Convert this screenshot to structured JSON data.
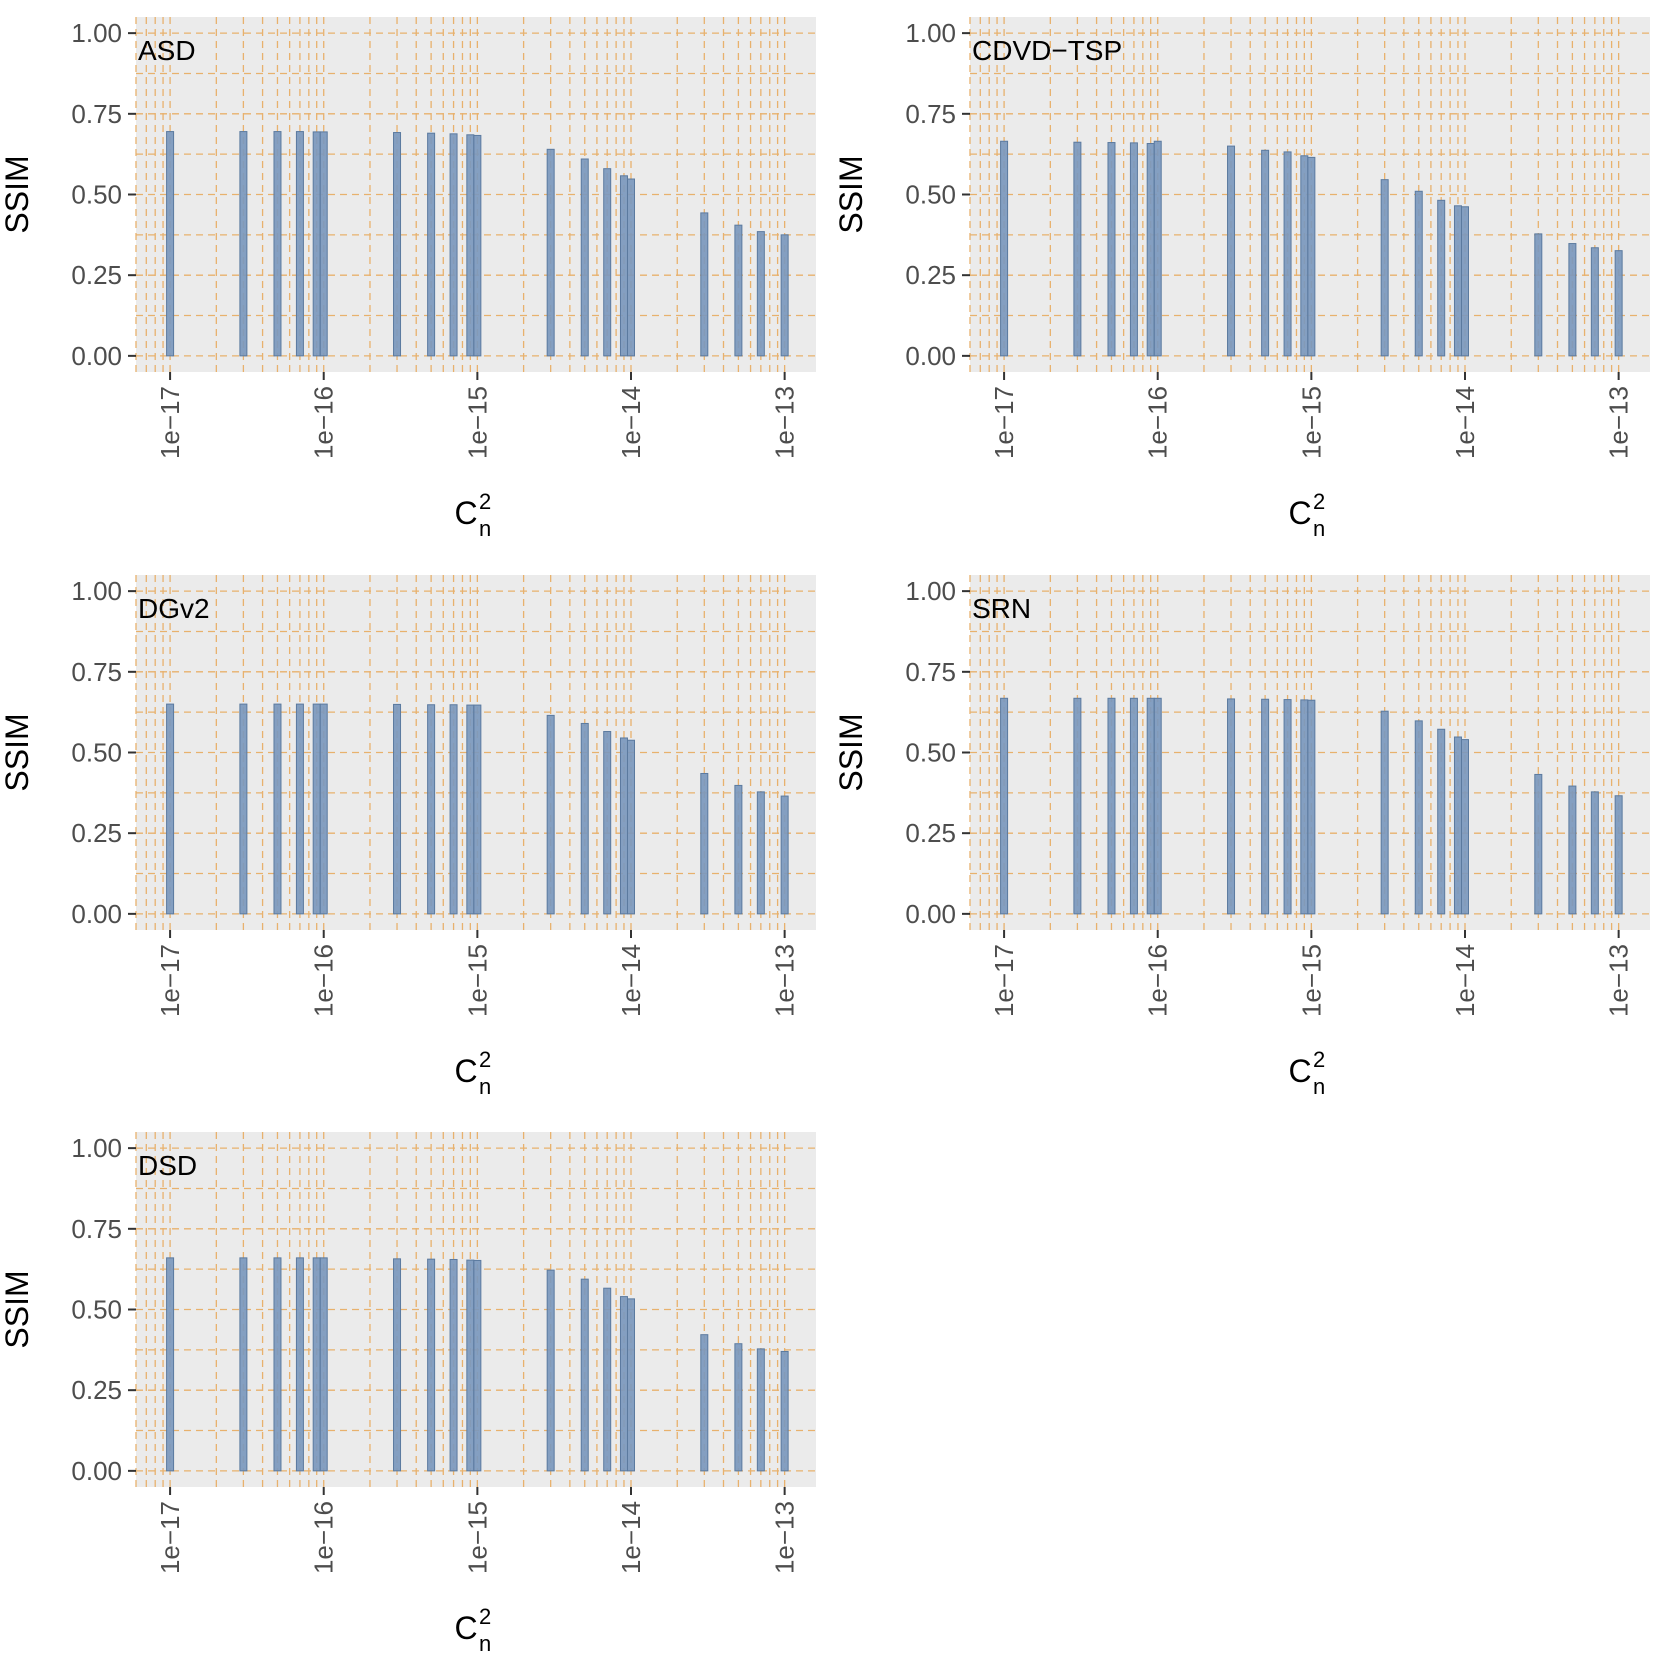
{
  "figure": {
    "background": "#ffffff",
    "panel_background": "#ebebeb"
  },
  "colors": {
    "bar": "#7b98bd",
    "bar_edge": "#5b7a9f",
    "grid": "#e8b16d",
    "axis_text": "#4d4d4d",
    "tick": "#333333"
  },
  "chart_data": [
    {
      "type": "bar",
      "title": "ASD",
      "xlabel_base": "C",
      "xlabel_sup": "2",
      "xlabel_sub": "n",
      "ylabel": "SSIM",
      "x_scale": "log10",
      "xlim": [
        6e-18,
        1.6e-13
      ],
      "ylim": [
        -0.05,
        1.05
      ],
      "yticks": [
        0.0,
        0.25,
        0.5,
        0.75,
        1.0
      ],
      "ytick_labels": [
        "0.00",
        "0.25",
        "0.50",
        "0.75",
        "1.00"
      ],
      "xticks": [
        1e-17,
        1e-16,
        1e-15,
        1e-14,
        1e-13
      ],
      "xtick_labels": [
        "1e−17",
        "1e−16",
        "1e−15",
        "1e−14",
        "1e−13"
      ],
      "x": [
        1e-17,
        3e-17,
        5e-17,
        7e-17,
        9e-17,
        1e-16,
        3e-16,
        5e-16,
        7e-16,
        9e-16,
        1e-15,
        3e-15,
        5e-15,
        7e-15,
        9e-15,
        1e-14,
        3e-14,
        5e-14,
        7e-14,
        1e-13
      ],
      "values": [
        0.695,
        0.695,
        0.695,
        0.695,
        0.694,
        0.694,
        0.692,
        0.69,
        0.688,
        0.685,
        0.683,
        0.64,
        0.61,
        0.58,
        0.558,
        0.548,
        0.443,
        0.405,
        0.385,
        0.375
      ],
      "grid": true
    },
    {
      "type": "bar",
      "title": "CDVD−TSP",
      "xlabel_base": "C",
      "xlabel_sup": "2",
      "xlabel_sub": "n",
      "ylabel": "SSIM",
      "x_scale": "log10",
      "xlim": [
        6e-18,
        1.6e-13
      ],
      "ylim": [
        -0.05,
        1.05
      ],
      "yticks": [
        0.0,
        0.25,
        0.5,
        0.75,
        1.0
      ],
      "ytick_labels": [
        "0.00",
        "0.25",
        "0.50",
        "0.75",
        "1.00"
      ],
      "xticks": [
        1e-17,
        1e-16,
        1e-15,
        1e-14,
        1e-13
      ],
      "xtick_labels": [
        "1e−17",
        "1e−16",
        "1e−15",
        "1e−14",
        "1e−13"
      ],
      "x": [
        1e-17,
        3e-17,
        5e-17,
        7e-17,
        9e-17,
        1e-16,
        3e-16,
        5e-16,
        7e-16,
        9e-16,
        1e-15,
        3e-15,
        5e-15,
        7e-15,
        9e-15,
        1e-14,
        3e-14,
        5e-14,
        7e-14,
        1e-13
      ],
      "values": [
        0.665,
        0.662,
        0.661,
        0.66,
        0.658,
        0.665,
        0.65,
        0.637,
        0.632,
        0.62,
        0.615,
        0.546,
        0.51,
        0.482,
        0.465,
        0.462,
        0.378,
        0.348,
        0.335,
        0.326
      ],
      "grid": true
    },
    {
      "type": "bar",
      "title": "DGv2",
      "xlabel_base": "C",
      "xlabel_sup": "2",
      "xlabel_sub": "n",
      "ylabel": "SSIM",
      "x_scale": "log10",
      "xlim": [
        6e-18,
        1.6e-13
      ],
      "ylim": [
        -0.05,
        1.05
      ],
      "yticks": [
        0.0,
        0.25,
        0.5,
        0.75,
        1.0
      ],
      "ytick_labels": [
        "0.00",
        "0.25",
        "0.50",
        "0.75",
        "1.00"
      ],
      "xticks": [
        1e-17,
        1e-16,
        1e-15,
        1e-14,
        1e-13
      ],
      "xtick_labels": [
        "1e−17",
        "1e−16",
        "1e−15",
        "1e−14",
        "1e−13"
      ],
      "x": [
        1e-17,
        3e-17,
        5e-17,
        7e-17,
        9e-17,
        1e-16,
        3e-16,
        5e-16,
        7e-16,
        9e-16,
        1e-15,
        3e-15,
        5e-15,
        7e-15,
        9e-15,
        1e-14,
        3e-14,
        5e-14,
        7e-14,
        1e-13
      ],
      "values": [
        0.65,
        0.65,
        0.65,
        0.65,
        0.65,
        0.65,
        0.649,
        0.648,
        0.648,
        0.647,
        0.647,
        0.615,
        0.59,
        0.565,
        0.545,
        0.538,
        0.435,
        0.398,
        0.378,
        0.365
      ],
      "grid": true
    },
    {
      "type": "bar",
      "title": "SRN",
      "xlabel_base": "C",
      "xlabel_sup": "2",
      "xlabel_sub": "n",
      "ylabel": "SSIM",
      "x_scale": "log10",
      "xlim": [
        6e-18,
        1.6e-13
      ],
      "ylim": [
        -0.05,
        1.05
      ],
      "yticks": [
        0.0,
        0.25,
        0.5,
        0.75,
        1.0
      ],
      "ytick_labels": [
        "0.00",
        "0.25",
        "0.50",
        "0.75",
        "1.00"
      ],
      "xticks": [
        1e-17,
        1e-16,
        1e-15,
        1e-14,
        1e-13
      ],
      "xtick_labels": [
        "1e−17",
        "1e−16",
        "1e−15",
        "1e−14",
        "1e−13"
      ],
      "x": [
        1e-17,
        3e-17,
        5e-17,
        7e-17,
        9e-17,
        1e-16,
        3e-16,
        5e-16,
        7e-16,
        9e-16,
        1e-15,
        3e-15,
        5e-15,
        7e-15,
        9e-15,
        1e-14,
        3e-14,
        5e-14,
        7e-14,
        1e-13
      ],
      "values": [
        0.668,
        0.668,
        0.668,
        0.668,
        0.668,
        0.668,
        0.666,
        0.665,
        0.664,
        0.663,
        0.662,
        0.628,
        0.598,
        0.572,
        0.548,
        0.54,
        0.432,
        0.396,
        0.378,
        0.366
      ],
      "grid": true
    },
    {
      "type": "bar",
      "title": "DSD",
      "xlabel_base": "C",
      "xlabel_sup": "2",
      "xlabel_sub": "n",
      "ylabel": "SSIM",
      "x_scale": "log10",
      "xlim": [
        6e-18,
        1.6e-13
      ],
      "ylim": [
        -0.05,
        1.05
      ],
      "yticks": [
        0.0,
        0.25,
        0.5,
        0.75,
        1.0
      ],
      "ytick_labels": [
        "0.00",
        "0.25",
        "0.50",
        "0.75",
        "1.00"
      ],
      "xticks": [
        1e-17,
        1e-16,
        1e-15,
        1e-14,
        1e-13
      ],
      "xtick_labels": [
        "1e−17",
        "1e−16",
        "1e−15",
        "1e−14",
        "1e−13"
      ],
      "x": [
        1e-17,
        3e-17,
        5e-17,
        7e-17,
        9e-17,
        1e-16,
        3e-16,
        5e-16,
        7e-16,
        9e-16,
        1e-15,
        3e-15,
        5e-15,
        7e-15,
        9e-15,
        1e-14,
        3e-14,
        5e-14,
        7e-14,
        1e-13
      ],
      "values": [
        0.66,
        0.66,
        0.66,
        0.66,
        0.66,
        0.66,
        0.657,
        0.656,
        0.655,
        0.653,
        0.652,
        0.622,
        0.594,
        0.566,
        0.54,
        0.533,
        0.422,
        0.394,
        0.378,
        0.37
      ],
      "grid": true
    }
  ]
}
